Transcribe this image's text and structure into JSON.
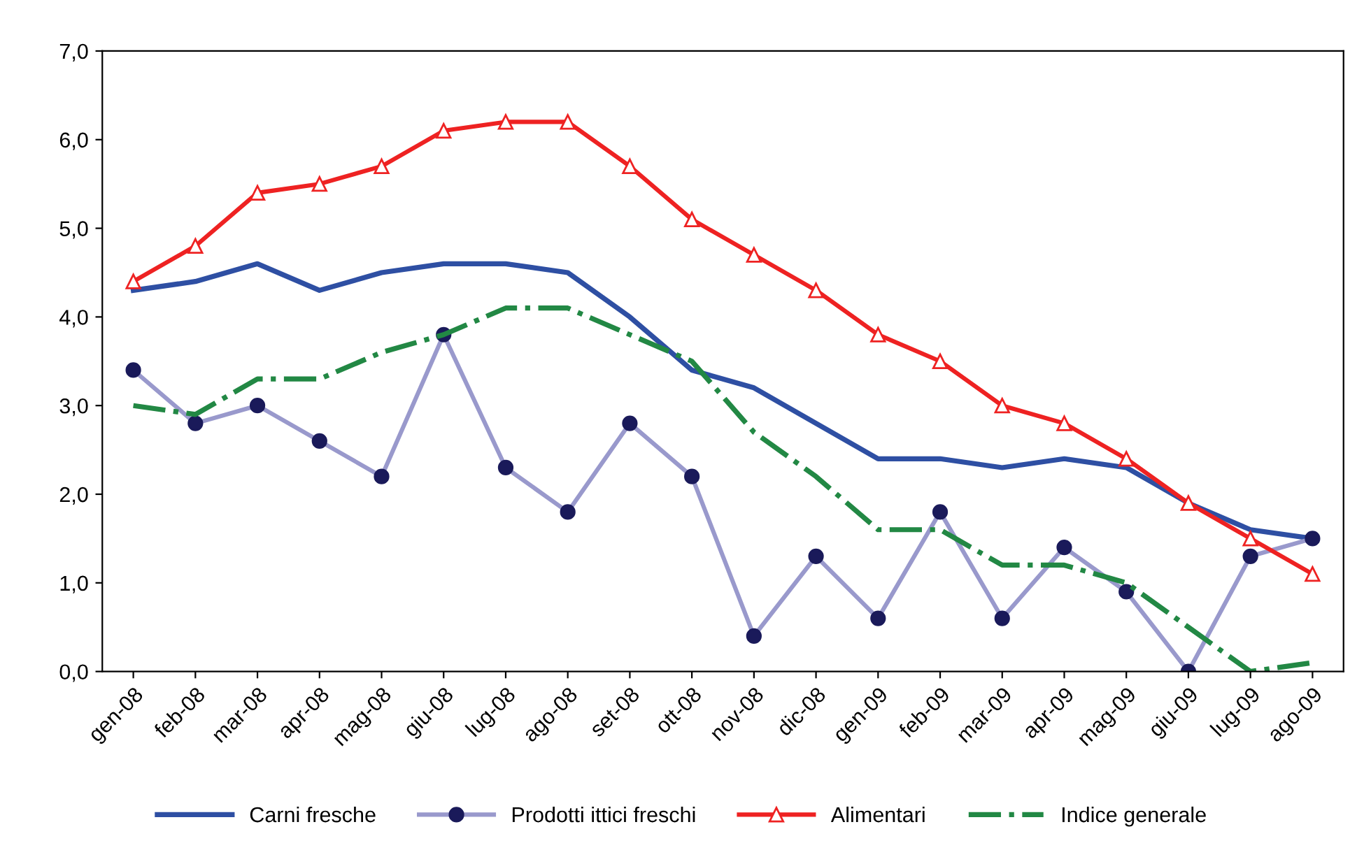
{
  "chart_data": {
    "type": "line",
    "categories": [
      "gen-08",
      "feb-08",
      "mar-08",
      "apr-08",
      "mag-08",
      "giu-08",
      "lug-08",
      "ago-08",
      "set-08",
      "ott-08",
      "nov-08",
      "dic-08",
      "gen-09",
      "feb-09",
      "mar-09",
      "apr-09",
      "mag-09",
      "giu-09",
      "lug-09",
      "ago-09"
    ],
    "series": [
      {
        "name": "Carni fresche",
        "color": "#2e4fa3",
        "marker": "none",
        "line_style": "solid",
        "values": [
          4.3,
          4.4,
          4.6,
          4.3,
          4.5,
          4.6,
          4.6,
          4.5,
          4.0,
          3.4,
          3.2,
          2.8,
          2.4,
          2.4,
          2.3,
          2.4,
          2.3,
          1.9,
          1.6,
          1.5
        ]
      },
      {
        "name": "Prodotti ittici freschi",
        "color": "#9999cc",
        "marker": "circle",
        "line_style": "solid",
        "values": [
          3.4,
          2.8,
          3.0,
          2.6,
          2.2,
          3.8,
          2.3,
          1.8,
          2.8,
          2.2,
          0.4,
          1.3,
          0.6,
          1.8,
          0.6,
          1.4,
          0.9,
          0.0,
          1.3,
          1.5
        ]
      },
      {
        "name": "Alimentari",
        "color": "#ee2222",
        "marker": "triangle",
        "line_style": "solid",
        "values": [
          4.4,
          4.8,
          5.4,
          5.5,
          5.7,
          6.1,
          6.2,
          6.2,
          5.7,
          5.1,
          4.7,
          4.3,
          3.8,
          3.5,
          3.0,
          2.8,
          2.4,
          1.9,
          1.5,
          1.1
        ]
      },
      {
        "name": "Indice generale",
        "color": "#228844",
        "marker": "none",
        "line_style": "dashdot",
        "values": [
          3.0,
          2.9,
          3.3,
          3.3,
          3.6,
          3.8,
          4.1,
          4.1,
          3.8,
          3.5,
          2.7,
          2.2,
          1.6,
          1.6,
          1.2,
          1.2,
          1.0,
          0.5,
          0.0,
          0.1
        ]
      }
    ],
    "ylim": [
      0,
      7
    ],
    "yticks": [
      {
        "value": 0,
        "label": "0,0"
      },
      {
        "value": 1,
        "label": "1,0"
      },
      {
        "value": 2,
        "label": "2,0"
      },
      {
        "value": 3,
        "label": "3,0"
      },
      {
        "value": 4,
        "label": "4,0"
      },
      {
        "value": 5,
        "label": "5,0"
      },
      {
        "value": 6,
        "label": "6,0"
      },
      {
        "value": 7,
        "label": "7,0"
      }
    ],
    "grid": false,
    "legend": "bottom"
  }
}
